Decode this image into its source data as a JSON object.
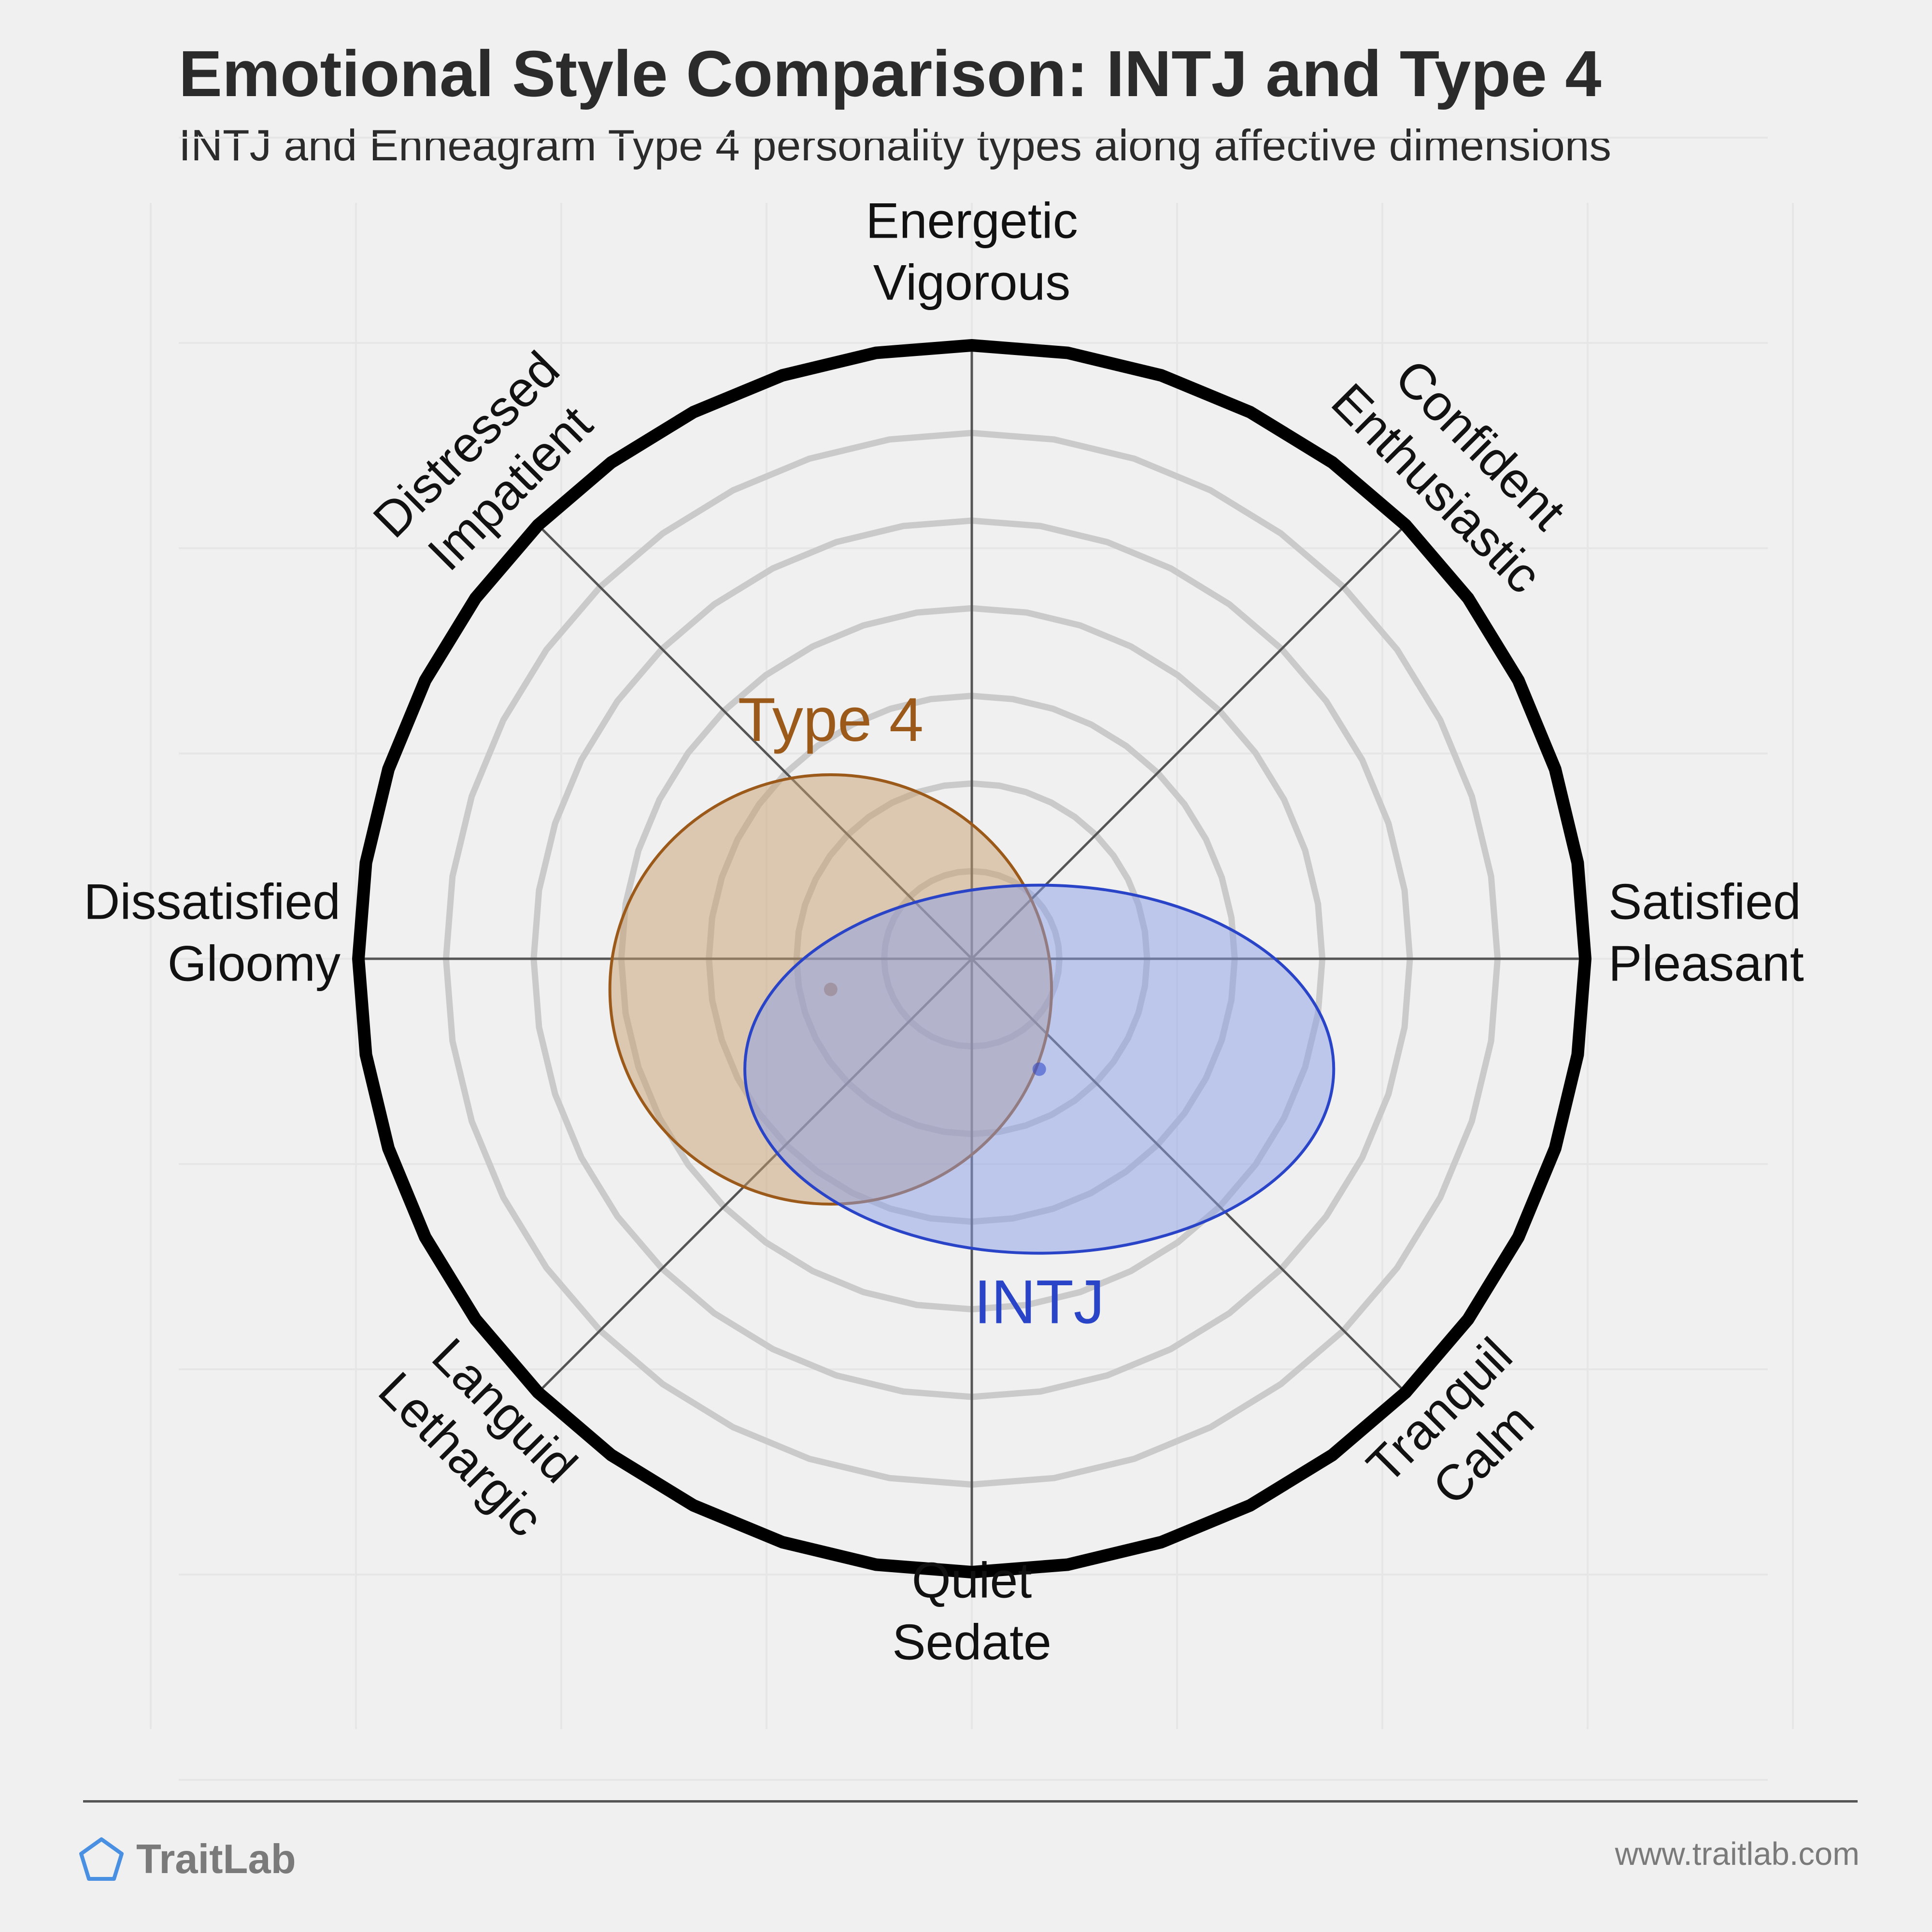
{
  "header": {
    "title": "Emotional Style Comparison: INTJ and Type 4",
    "subtitle": "INTJ and Enneagram Type 4 personality types along affective dimensions"
  },
  "chart_data": {
    "type": "scatter",
    "axes": [
      {
        "name": "energetic",
        "lines": [
          "Energetic",
          "Vigorous"
        ]
      },
      {
        "name": "confident",
        "lines": [
          "Confident",
          "Enthusiastic"
        ]
      },
      {
        "name": "satisfied",
        "lines": [
          "Satisfied",
          "Pleasant"
        ]
      },
      {
        "name": "tranquil",
        "lines": [
          "Tranquil",
          "Calm"
        ]
      },
      {
        "name": "quiet",
        "lines": [
          "Quiet",
          "Sedate"
        ]
      },
      {
        "name": "languid",
        "lines": [
          "Languid",
          "Lethargic"
        ]
      },
      {
        "name": "dissatisfied",
        "lines": [
          "Dissatisfied",
          "Gloomy"
        ]
      },
      {
        "name": "distressed",
        "lines": [
          "Distressed",
          "Impatient"
        ]
      }
    ],
    "xlim": [
      -1,
      1
    ],
    "ylim": [
      -1,
      1
    ],
    "ring_count": 6,
    "series": [
      {
        "name": "Type 4",
        "x": -0.23,
        "y": -0.05,
        "spread_x": 0.36,
        "spread_y": 0.35,
        "color": "#9b5a1a",
        "fill": "#c8a072"
      },
      {
        "name": "INTJ",
        "x": 0.11,
        "y": -0.18,
        "spread_x": 0.48,
        "spread_y": 0.3,
        "color": "#2a44c8",
        "fill": "#8a9ee8"
      }
    ]
  },
  "footer": {
    "brand": "TraitLab",
    "website": "www.traitlab.com"
  },
  "colors": {
    "background": "#f0f0f0",
    "text": "#2b2b2b",
    "muted": "#7a7a7a",
    "brand": "#4a90e2"
  }
}
